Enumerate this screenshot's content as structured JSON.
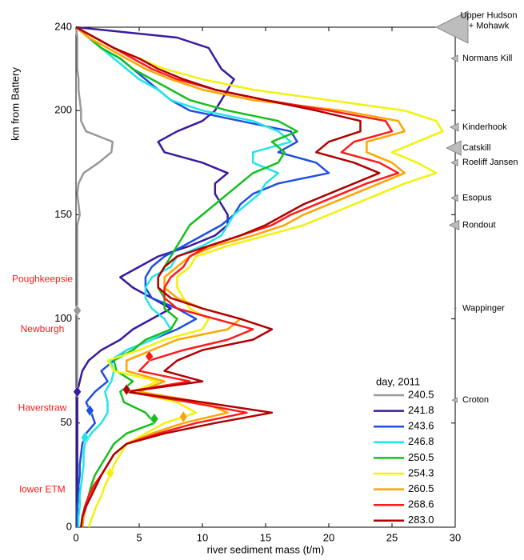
{
  "chart_data": {
    "type": "line",
    "xlabel": "river sediment mass (t/m)",
    "ylabel": "km from Battery",
    "xlim": [
      0,
      30
    ],
    "ylim": [
      0,
      240
    ],
    "xticks": [
      0,
      5,
      10,
      15,
      20,
      25,
      30
    ],
    "yticks": [
      0,
      50,
      100,
      150,
      200,
      240
    ],
    "legend_title": "day, 2011",
    "legend": "lower right",
    "y": [
      0,
      5,
      10,
      15,
      20,
      25,
      30,
      35,
      40,
      45,
      50,
      55,
      60,
      65,
      70,
      75,
      80,
      85,
      90,
      95,
      100,
      105,
      110,
      115,
      120,
      125,
      130,
      135,
      140,
      145,
      150,
      155,
      160,
      165,
      170,
      175,
      180,
      185,
      190,
      195,
      200,
      205,
      210,
      215,
      220,
      225,
      230,
      235,
      240
    ],
    "series": [
      {
        "name": "240.5",
        "color": "#999999",
        "marker": {
          "x": 0.1,
          "y": 104
        },
        "values": [
          0.1,
          0.1,
          0.1,
          0.1,
          0.1,
          0.1,
          0.1,
          0.1,
          0.1,
          0.1,
          0.1,
          0.1,
          0.1,
          0.1,
          0.1,
          0.1,
          0.1,
          0.1,
          0.1,
          0.1,
          0.1,
          0.1,
          0.1,
          0.1,
          0.1,
          0.1,
          0.1,
          0.1,
          0.1,
          0.1,
          0.3,
          0.2,
          0.1,
          0.2,
          0.6,
          1.8,
          2.8,
          2.9,
          0.8,
          0.4,
          0.4,
          0.3,
          0.2,
          0.2,
          0.1,
          0.1,
          0.1,
          0.1,
          0
        ]
      },
      {
        "name": "241.8",
        "color": "#3a1a9e",
        "marker": {
          "x": 0.1,
          "y": 65
        },
        "values": [
          0.1,
          0.1,
          0.1,
          0.1,
          0.1,
          0.1,
          0.1,
          0.1,
          0.1,
          0.1,
          0.1,
          0.1,
          0.1,
          0.1,
          0.3,
          0.5,
          1,
          2,
          3.5,
          4.5,
          6,
          7.5,
          6,
          4.5,
          3.5,
          5,
          6.5,
          9,
          11,
          12,
          12,
          11.5,
          11,
          11,
          12,
          10,
          7,
          6.5,
          8,
          10,
          11,
          11.5,
          12,
          12.5,
          11.5,
          11,
          10.5,
          8,
          0
        ]
      },
      {
        "name": "243.6",
        "color": "#1f4fe0",
        "marker": {
          "x": 1.1,
          "y": 56
        },
        "values": [
          0.1,
          0.1,
          0.1,
          0.2,
          0.2,
          0.3,
          0.3,
          0.4,
          0.5,
          0.8,
          1.5,
          1.2,
          0.8,
          1.5,
          2.5,
          2,
          3,
          4,
          6,
          8,
          9.5,
          8,
          6,
          5.5,
          5.5,
          6,
          7,
          8.5,
          10,
          11.5,
          12.5,
          13,
          14,
          16,
          20,
          19,
          16,
          17.5,
          17,
          13,
          9,
          7.5,
          6.5,
          5.5,
          4.5,
          3.5,
          2,
          1,
          0
        ]
      },
      {
        "name": "246.8",
        "color": "#22e6e6",
        "marker": {
          "x": 0.7,
          "y": 43
        },
        "values": [
          0.2,
          0.2,
          0.3,
          0.3,
          0.4,
          0.5,
          0.6,
          0.6,
          0.7,
          1.2,
          2,
          2.5,
          2.5,
          2.3,
          2.8,
          3,
          2.7,
          4,
          6,
          7.5,
          7,
          6,
          5.5,
          5.5,
          6,
          7.5,
          8,
          10,
          11.5,
          12,
          12.5,
          13.5,
          14.5,
          15,
          16,
          14,
          14,
          17,
          16,
          14,
          10,
          7.5,
          6.5,
          5,
          4,
          3,
          2,
          1,
          0
        ]
      },
      {
        "name": "250.5",
        "color": "#14bf1e",
        "marker": {
          "x": 6.2,
          "y": 52
        },
        "values": [
          0.5,
          0.6,
          0.8,
          1,
          1.2,
          1.5,
          2,
          2.5,
          3,
          4,
          6.2,
          5.5,
          3.8,
          3.5,
          4.5,
          3.2,
          3,
          4.5,
          5.5,
          7.5,
          8,
          7,
          7,
          6.5,
          6.5,
          7,
          7.5,
          8,
          8.5,
          9,
          10,
          11,
          12,
          13,
          14,
          16,
          16.5,
          15.5,
          17.5,
          16,
          12,
          9,
          7.5,
          6,
          4.5,
          3.5,
          2,
          1,
          0
        ]
      },
      {
        "name": "254.3",
        "color": "#f2f20a",
        "marker": {
          "x": 2.7,
          "y": 26
        },
        "values": [
          1,
          1.3,
          1.6,
          2,
          2.3,
          2.7,
          3,
          3.5,
          4,
          5.5,
          7,
          9.5,
          8,
          4.5,
          6.5,
          3,
          2.5,
          5,
          7,
          10,
          10.5,
          9,
          8.5,
          8,
          8,
          9,
          9.5,
          12,
          15,
          18,
          20,
          22,
          24,
          26,
          28.5,
          27,
          25,
          27,
          29,
          28.5,
          26,
          20,
          14,
          10,
          7,
          5,
          3,
          1.5,
          0
        ]
      },
      {
        "name": "260.5",
        "color": "#ffa500",
        "marker": {
          "x": 8.5,
          "y": 53
        },
        "values": [
          0.5,
          0.6,
          0.8,
          1,
          1.5,
          2,
          2.5,
          3,
          4,
          6,
          8.5,
          12,
          10,
          5,
          7,
          4,
          4,
          6,
          8,
          12,
          13,
          10,
          8,
          7,
          7,
          8,
          9,
          11,
          14,
          16.5,
          18,
          20,
          22,
          24,
          26,
          25,
          23,
          23,
          26,
          25.5,
          21,
          14,
          10,
          7.5,
          5.5,
          4,
          2.5,
          1,
          0
        ]
      },
      {
        "name": "268.6",
        "color": "#ff1a1a",
        "marker": {
          "x": 5.8,
          "y": 82
        },
        "values": [
          0.4,
          0.5,
          0.7,
          1,
          1.4,
          2,
          2.5,
          3,
          4,
          6.5,
          9.5,
          13.5,
          9,
          4,
          9,
          5,
          5.8,
          8.5,
          12,
          14,
          11,
          8,
          7,
          7,
          7.5,
          8.5,
          9,
          10.5,
          13,
          15.5,
          17,
          19,
          21,
          23,
          25.5,
          24,
          21,
          22,
          25,
          24.5,
          20,
          15,
          11,
          8,
          6,
          4.5,
          3,
          1.5,
          0
        ]
      },
      {
        "name": "283.0",
        "color": "#b00000",
        "marker": {
          "x": 4,
          "y": 66
        },
        "values": [
          0.4,
          0.5,
          0.8,
          1.2,
          1.6,
          2,
          2.5,
          3,
          4,
          7,
          11,
          15.5,
          10,
          4,
          10,
          7,
          8,
          10,
          14,
          15.5,
          13,
          10,
          7.5,
          6.5,
          6.5,
          7,
          8,
          10.5,
          13,
          15,
          16.5,
          18,
          20,
          22,
          24,
          22,
          19,
          20,
          22.5,
          22.5,
          19,
          15,
          11,
          8.5,
          6.5,
          5,
          3,
          1.5,
          0
        ]
      }
    ],
    "locations": [
      {
        "label": "Poughkeepsie",
        "km": 119
      },
      {
        "label": "Newburgh",
        "km": 95
      },
      {
        "label": "Haverstraw",
        "km": 57
      },
      {
        "label": "lower ETM",
        "km": 18
      }
    ],
    "tributaries": [
      {
        "lines": [
          "Upper Hudson",
          "+ Mohawk"
        ],
        "km": 240,
        "size": 20
      },
      {
        "lines": [
          "Normans Kill"
        ],
        "km": 225,
        "size": 4
      },
      {
        "lines": [
          "Kinderhook"
        ],
        "km": 192,
        "size": 5
      },
      {
        "lines": [
          "Catskill"
        ],
        "km": 182,
        "size": 9
      },
      {
        "lines": [
          "Roeliff Jansen"
        ],
        "km": 175,
        "size": 4
      },
      {
        "lines": [
          "Esopus"
        ],
        "km": 158,
        "size": 4
      },
      {
        "lines": [
          "Rondout"
        ],
        "km": 145,
        "size": 6
      },
      {
        "lines": [
          "Wappinger"
        ],
        "km": 105,
        "size": 1
      },
      {
        "lines": [
          "Croton"
        ],
        "km": 61,
        "size": 3
      }
    ]
  }
}
